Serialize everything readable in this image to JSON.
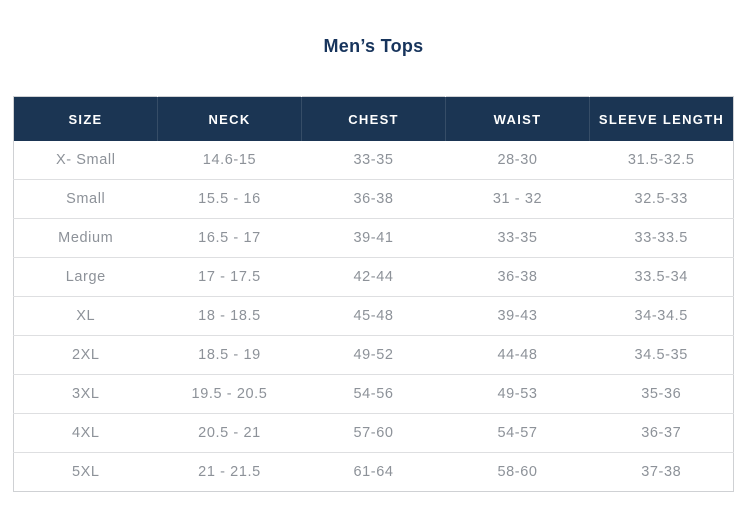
{
  "page": {
    "title": "Men’s Tops"
  },
  "colors": {
    "header_bg": "#1B3553",
    "header_text": "#FFFFFF",
    "title_text": "#17345C",
    "body_text": "#8D9299",
    "row_border": "#DEDFE1",
    "outer_border": "#CFD1D4"
  },
  "table": {
    "columns": [
      "SIZE",
      "NECK",
      "CHEST",
      "WAIST",
      "SLEEVE LENGTH"
    ],
    "rows": [
      [
        "X- Small",
        "14.6-15",
        "33-35",
        "28-30",
        "31.5-32.5"
      ],
      [
        "Small",
        "15.5 - 16",
        "36-38",
        "31 - 32",
        "32.5-33"
      ],
      [
        "Medium",
        "16.5 - 17",
        "39-41",
        "33-35",
        "33-33.5"
      ],
      [
        "Large",
        "17 - 17.5",
        "42-44",
        "36-38",
        "33.5-34"
      ],
      [
        "XL",
        "18 - 18.5",
        "45-48",
        "39-43",
        "34-34.5"
      ],
      [
        "2XL",
        "18.5 - 19",
        "49-52",
        "44-48",
        "34.5-35"
      ],
      [
        "3XL",
        "19.5 - 20.5",
        "54-56",
        "49-53",
        "35-36"
      ],
      [
        "4XL",
        "20.5 - 21",
        "57-60",
        "54-57",
        "36-37"
      ],
      [
        "5XL",
        "21 - 21.5",
        "61-64",
        "58-60",
        "37-38"
      ]
    ]
  }
}
